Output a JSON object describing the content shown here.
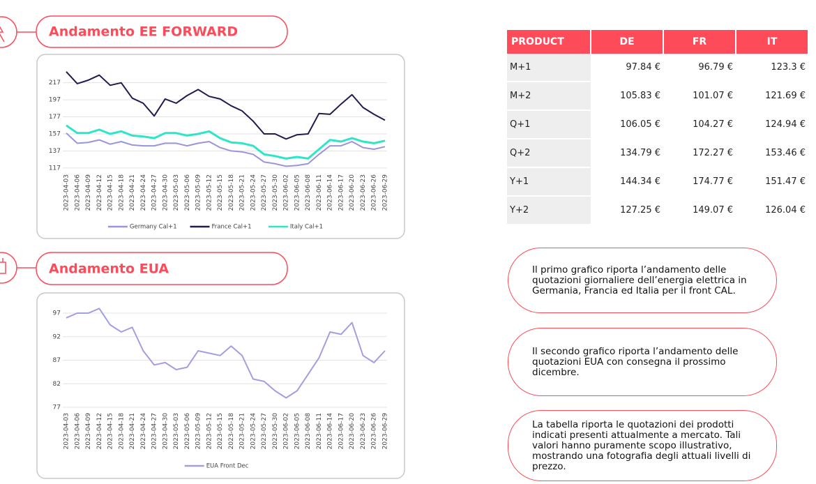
{
  "sections": [
    {
      "title": "Andamento EE FORWARD"
    },
    {
      "title": "Andamento EUA"
    }
  ],
  "chart_data": [
    {
      "type": "line",
      "categories": [
        "2023-04-03",
        "2023-04-06",
        "2023-04-09",
        "2023-04-12",
        "2023-04-15",
        "2023-04-18",
        "2023-04-21",
        "2023-04-24",
        "2023-04-27",
        "2023-04-30",
        "2023-05-03",
        "2023-05-06",
        "2023-05-09",
        "2023-05-12",
        "2023-05-15",
        "2023-05-18",
        "2023-05-21",
        "2023-05-24",
        "2023-05-27",
        "2023-05-30",
        "2023-06-02",
        "2023-06-05",
        "2023-06-08",
        "2023-06-11",
        "2023-06-14",
        "2023-06-17",
        "2023-06-20",
        "2023-06-23",
        "2023-06-26",
        "2023-06-29"
      ],
      "series": [
        {
          "name": "Germany Cal+1",
          "color": "#9a94db",
          "values": [
            158,
            146,
            147,
            150,
            145,
            148,
            144,
            143,
            143,
            146,
            146,
            143,
            146,
            148,
            141,
            137,
            136,
            133,
            124,
            122,
            119,
            120,
            122,
            133,
            143,
            143,
            148,
            141,
            139,
            142
          ]
        },
        {
          "name": "France Cal+1",
          "color": "#1f1b4d",
          "values": [
            230,
            216,
            220,
            226,
            214,
            217,
            199,
            193,
            178,
            198,
            193,
            202,
            209,
            201,
            198,
            190,
            184,
            172,
            157,
            157,
            151,
            156,
            157,
            181,
            180,
            192,
            203,
            188,
            180,
            173
          ]
        },
        {
          "name": "Italy Cal+1",
          "color": "#2de6c8",
          "values": [
            167,
            158,
            158,
            162,
            157,
            160,
            155,
            154,
            152,
            158,
            158,
            155,
            157,
            160,
            152,
            147,
            146,
            143,
            133,
            131,
            128,
            130,
            128,
            139,
            150,
            148,
            152,
            148,
            146,
            149
          ]
        }
      ],
      "ylim": [
        112,
        238
      ],
      "yticks": [
        117,
        137,
        157,
        177,
        197,
        217
      ],
      "grid": true,
      "legend": "bottom"
    },
    {
      "type": "line",
      "categories": [
        "2023-04-03",
        "2023-04-06",
        "2023-04-09",
        "2023-04-12",
        "2023-04-15",
        "2023-04-18",
        "2023-04-21",
        "2023-04-24",
        "2023-04-27",
        "2023-04-30",
        "2023-05-03",
        "2023-05-06",
        "2023-05-09",
        "2023-05-12",
        "2023-05-15",
        "2023-05-18",
        "2023-05-21",
        "2023-05-24",
        "2023-05-27",
        "2023-05-30",
        "2023-06-02",
        "2023-06-05",
        "2023-06-08",
        "2023-06-11",
        "2023-06-14",
        "2023-06-17",
        "2023-06-20",
        "2023-06-23",
        "2023-06-26",
        "2023-06-29"
      ],
      "series": [
        {
          "name": "EUA Front Dec",
          "color": "#a29ee0",
          "values": [
            96,
            97,
            97,
            98,
            94.5,
            93,
            94,
            89,
            86,
            86.5,
            85,
            85.5,
            89,
            88.5,
            88,
            90,
            88,
            83,
            82.5,
            80.5,
            79,
            80.5,
            84,
            87.5,
            93,
            92.5,
            95,
            88,
            86.5,
            89
          ]
        }
      ],
      "ylim": [
        75,
        99
      ],
      "yticks": [
        77,
        82,
        87,
        92,
        97
      ],
      "grid": true,
      "legend": "bottom"
    }
  ],
  "table": {
    "header": [
      "PRODUCT",
      "DE",
      "FR",
      "IT"
    ],
    "rows": [
      [
        "M+1",
        "97.84 €",
        "96.79 €",
        "123.3 €"
      ],
      [
        "M+2",
        "105.83 €",
        "101.07 €",
        "121.69 €"
      ],
      [
        "Q+1",
        "106.05 €",
        "104.27 €",
        "124.94 €"
      ],
      [
        "Q+2",
        "134.79 €",
        "172.27 €",
        "153.46 €"
      ],
      [
        "Y+1",
        "144.34 €",
        "174.77 €",
        "151.47 €"
      ],
      [
        "Y+2",
        "127.25 €",
        "149.07 €",
        "126.04 €"
      ]
    ]
  },
  "notes": [
    "Il primo grafico riporta l’andamento delle quotazioni giornaliere dell’energia elettrica in Germania, Francia ed Italia per il front CAL.",
    "Il secondo grafico riporta l’andamento delle quotazioni EUA con consegna il prossimo dicembre.",
    "La tabella riporta le quotazioni dei prodotti indicati presenti attualmente a mercato. Tali valori hanno puramente scopo illustrativo, mostrando una fotografia degli attuali livelli di prezzo."
  ]
}
